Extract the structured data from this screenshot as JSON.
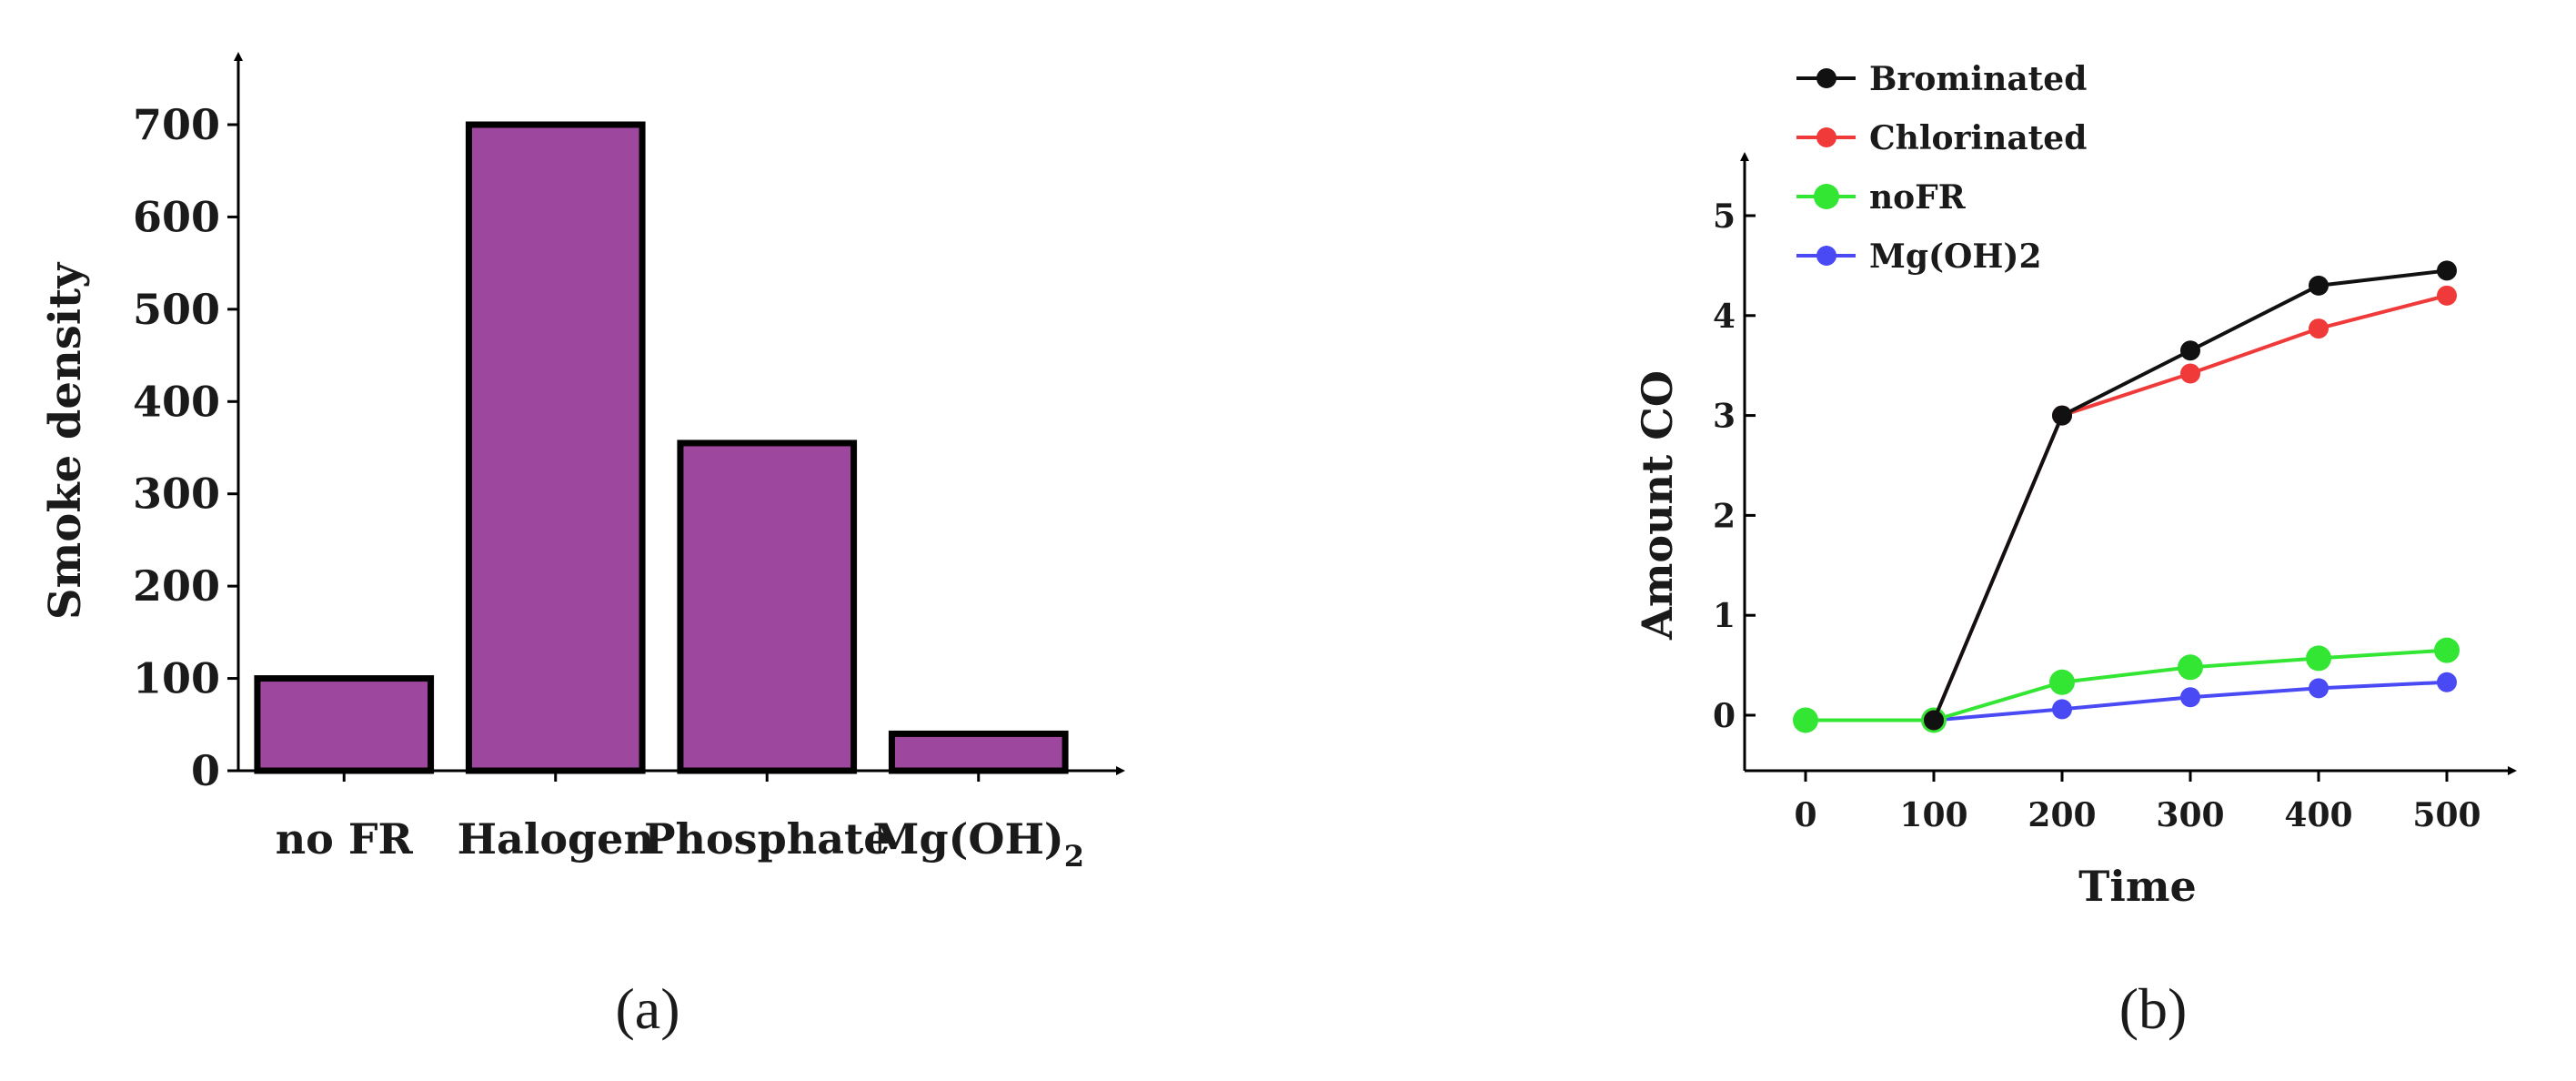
{
  "chart_data": [
    {
      "type": "bar",
      "panel_label": "(a)",
      "categories": [
        "no FR",
        "Halogen",
        "Phosphate",
        "Mg(OH)"
      ],
      "category_subscripts": [
        "",
        "",
        "",
        "2"
      ],
      "values": [
        100,
        700,
        355,
        40
      ],
      "ylabel": "Smoke density",
      "xlabel": "",
      "ylim": [
        0,
        700
      ],
      "yticks": [
        0,
        100,
        200,
        300,
        400,
        500,
        600,
        700
      ],
      "grid": false,
      "bar_color": "#9e479e",
      "bar_edge_color": "#000000"
    },
    {
      "type": "line",
      "panel_label": "(b)",
      "x": [
        0,
        100,
        200,
        300,
        400,
        500
      ],
      "xticks": [
        0,
        100,
        200,
        300,
        400,
        500
      ],
      "xlabel": "Time",
      "ylabel": "Amount CO",
      "ylim": [
        0,
        5
      ],
      "yticks": [
        0,
        1,
        2,
        3,
        4,
        5
      ],
      "grid": false,
      "legend_position": "top-left",
      "series": [
        {
          "name": "Brominated",
          "color": "#111111",
          "values": [
            null,
            -0.05,
            3.0,
            3.65,
            4.3,
            4.45
          ]
        },
        {
          "name": "Chlorinated",
          "color": "#f03a3a",
          "values": [
            null,
            -0.05,
            3.0,
            3.42,
            3.87,
            4.2
          ]
        },
        {
          "name": "noFR",
          "color": "#33e633",
          "values": [
            -0.05,
            -0.05,
            0.33,
            0.48,
            0.57,
            0.65
          ]
        },
        {
          "name": "Mg(OH)2",
          "color": "#4a4af5",
          "values": [
            -0.05,
            -0.05,
            0.06,
            0.18,
            0.27,
            0.33
          ]
        }
      ]
    }
  ]
}
